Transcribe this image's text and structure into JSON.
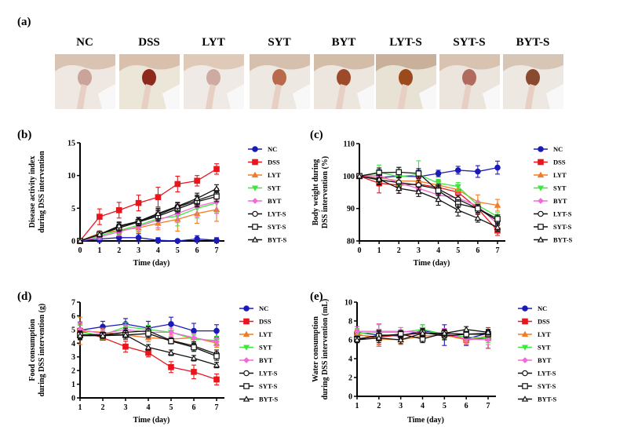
{
  "panel_a": {
    "label": "(a)",
    "groups": [
      "NC",
      "DSS",
      "LYT",
      "SYT",
      "BYT",
      "LYT-S",
      "SYT-S",
      "BYT-S"
    ]
  },
  "series_styles": [
    {
      "name": "NC",
      "color": "#1a1ab8",
      "marker": "circle-filled"
    },
    {
      "name": "DSS",
      "color": "#e8161c",
      "marker": "square-filled"
    },
    {
      "name": "LYT",
      "color": "#f27b25",
      "marker": "triangle-filled"
    },
    {
      "name": "SYT",
      "color": "#3ce83c",
      "marker": "triangle-down-filled"
    },
    {
      "name": "BYT",
      "color": "#f26ad8",
      "marker": "diamond-filled"
    },
    {
      "name": "LYT-S",
      "color": "#111111",
      "marker": "circle-open"
    },
    {
      "name": "SYT-S",
      "color": "#111111",
      "marker": "square-open"
    },
    {
      "name": "BYT-S",
      "color": "#111111",
      "marker": "triangle-open"
    }
  ],
  "chart_data": [
    {
      "id": "b",
      "panel_label": "(b)",
      "type": "line",
      "title": "",
      "xlabel": "Time (day)",
      "ylabel": [
        "Disease activity index",
        "during DSS intervention"
      ],
      "x": [
        0,
        1,
        2,
        3,
        4,
        5,
        6,
        7
      ],
      "xlim": [
        0,
        7
      ],
      "ylim": [
        0,
        15
      ],
      "yticks": [
        0,
        5,
        10,
        15
      ],
      "legend": "right",
      "series": [
        {
          "name": "NC",
          "values": [
            0,
            0.3,
            0.5,
            0.5,
            0.1,
            0,
            0.3,
            0.1
          ],
          "err": [
            0,
            0.5,
            0.6,
            0.6,
            0.4,
            0.1,
            0.5,
            0.4
          ]
        },
        {
          "name": "DSS",
          "values": [
            0,
            3.7,
            4.7,
            5.8,
            6.7,
            8.7,
            9.2,
            11.0
          ],
          "err": [
            0,
            1.2,
            1.2,
            1.2,
            1.5,
            1.2,
            0.8,
            0.8
          ]
        },
        {
          "name": "LYT",
          "values": [
            0,
            1.2,
            1.6,
            2.0,
            2.7,
            3.3,
            4.2,
            4.8
          ],
          "err": [
            0,
            0.4,
            0.6,
            0.8,
            1.0,
            1.8,
            1.5,
            1.8
          ]
        },
        {
          "name": "SYT",
          "values": [
            0,
            0.8,
            1.6,
            2.4,
            3.4,
            3.8,
            5.0,
            5.8
          ],
          "err": [
            0,
            0.4,
            0.6,
            0.9,
            1.4,
            1.5,
            1.5,
            1.5
          ]
        },
        {
          "name": "BYT",
          "values": [
            0,
            0.6,
            1.4,
            2.2,
            3.2,
            4.2,
            5.3,
            6.0
          ],
          "err": [
            0,
            0.4,
            0.6,
            0.8,
            1.2,
            1.4,
            1.6,
            1.8
          ]
        },
        {
          "name": "LYT-S",
          "values": [
            0,
            1.0,
            2.2,
            3.0,
            4.0,
            5.2,
            6.2,
            7.2
          ],
          "err": [
            0,
            0.4,
            0.6,
            0.6,
            0.8,
            0.6,
            0.8,
            0.8
          ]
        },
        {
          "name": "SYT-S",
          "values": [
            0,
            1.0,
            2.0,
            2.9,
            3.8,
            4.9,
            6.0,
            6.8
          ],
          "err": [
            0,
            0.4,
            0.6,
            0.6,
            0.8,
            0.6,
            0.8,
            0.8
          ]
        },
        {
          "name": "BYT-S",
          "values": [
            0,
            1.0,
            2.3,
            3.0,
            4.2,
            5.3,
            6.5,
            8.0
          ],
          "err": [
            0,
            0.4,
            0.6,
            0.6,
            0.8,
            0.6,
            0.8,
            0.6
          ]
        }
      ]
    },
    {
      "id": "c",
      "panel_label": "(c)",
      "type": "line",
      "title": "",
      "xlabel": "Time (day)",
      "ylabel": [
        "Body weight during",
        "DSS intervention (%)"
      ],
      "x": [
        0,
        1,
        2,
        3,
        4,
        5,
        6,
        7
      ],
      "xlim": [
        0,
        7
      ],
      "ylim": [
        80,
        110
      ],
      "yticks": [
        80,
        90,
        100,
        110
      ],
      "legend": "right",
      "series": [
        {
          "name": "NC",
          "values": [
            100,
            99.5,
            100,
            99.8,
            100.8,
            101.8,
            101.4,
            102.6
          ],
          "err": [
            0,
            2.5,
            2,
            2,
            1,
            1.2,
            1.8,
            2
          ]
        },
        {
          "name": "DSS",
          "values": [
            100,
            97.8,
            97.2,
            97.5,
            96.5,
            95.0,
            90.0,
            83.2
          ],
          "err": [
            0,
            3,
            2.5,
            2,
            2,
            2,
            1.5,
            1.5
          ]
        },
        {
          "name": "LYT",
          "values": [
            100,
            99.5,
            98.5,
            98.4,
            97.2,
            95.8,
            92.0,
            91.0
          ],
          "err": [
            0,
            1.5,
            1.5,
            1.5,
            1.5,
            1.5,
            2.2,
            1.8
          ]
        },
        {
          "name": "SYT",
          "values": [
            100,
            101.2,
            99.8,
            100.5,
            97.8,
            96.8,
            91.0,
            87.5
          ],
          "err": [
            0,
            2.2,
            2.8,
            4.2,
            1.2,
            1.2,
            1,
            1.2
          ]
        },
        {
          "name": "BYT",
          "values": [
            100,
            100.2,
            97.8,
            96.2,
            94.2,
            93.2,
            90.8,
            85.2
          ],
          "err": [
            0,
            1.5,
            1.5,
            1.5,
            1.5,
            1.5,
            1.5,
            1.5
          ]
        },
        {
          "name": "LYT-S",
          "values": [
            100,
            98.8,
            98.0,
            97.2,
            96.0,
            92.8,
            90.0,
            86.2
          ],
          "err": [
            0,
            1.5,
            1.5,
            1.5,
            1.5,
            1.2,
            1.2,
            1.2
          ]
        },
        {
          "name": "SYT-S",
          "values": [
            100,
            101.0,
            101.2,
            100.8,
            95.5,
            91.5,
            90.0,
            86.8
          ],
          "err": [
            0,
            1.5,
            1.5,
            1.5,
            1.5,
            1.2,
            1.2,
            1.2
          ]
        },
        {
          "name": "BYT-S",
          "values": [
            100,
            99.0,
            96.2,
            95.2,
            92.8,
            89.5,
            87.0,
            84.2
          ],
          "err": [
            0,
            1.5,
            1.5,
            1.5,
            1.8,
            1.8,
            1.2,
            1.2
          ]
        }
      ]
    },
    {
      "id": "d",
      "panel_label": "(d)",
      "type": "line",
      "title": "",
      "xlabel": "Time (day)",
      "ylabel": [
        "Food consumption",
        "during DSS intervention (g)"
      ],
      "x": [
        1,
        2,
        3,
        4,
        5,
        6,
        7
      ],
      "xlim": [
        1,
        7
      ],
      "ylim": [
        0,
        7
      ],
      "yticks": [
        0,
        1,
        2,
        3,
        4,
        5,
        6,
        7
      ],
      "legend": "right",
      "series": [
        {
          "name": "NC",
          "values": [
            4.95,
            5.2,
            5.4,
            5.1,
            5.4,
            4.9,
            4.9
          ],
          "err": [
            0.6,
            0.4,
            0.4,
            0.5,
            0.5,
            0.55,
            0.45
          ]
        },
        {
          "name": "DSS",
          "values": [
            4.9,
            4.4,
            3.75,
            3.3,
            2.25,
            1.9,
            1.35
          ],
          "err": [
            0.5,
            0.15,
            0.4,
            0.3,
            0.4,
            0.5,
            0.4
          ]
        },
        {
          "name": "LYT",
          "values": [
            4.9,
            4.8,
            4.6,
            4.4,
            4.3,
            4.4,
            4.0
          ],
          "err": [
            1.0,
            0.3,
            0.3,
            0.3,
            0.3,
            0.3,
            0.3
          ]
        },
        {
          "name": "SYT",
          "values": [
            4.8,
            4.6,
            5.2,
            5.0,
            4.8,
            4.3,
            4.2
          ],
          "err": [
            0.5,
            0.3,
            0.3,
            0.3,
            0.3,
            0.3,
            0.3
          ]
        },
        {
          "name": "BYT",
          "values": [
            5.0,
            4.7,
            5.0,
            4.8,
            4.8,
            4.4,
            4.1
          ],
          "err": [
            0.5,
            0.3,
            0.3,
            0.3,
            0.3,
            0.3,
            0.3
          ]
        },
        {
          "name": "LYT-S",
          "values": [
            4.6,
            4.6,
            4.8,
            4.9,
            4.2,
            3.8,
            3.2
          ],
          "err": [
            0.3,
            0.2,
            0.3,
            0.3,
            0.2,
            0.3,
            0.3
          ]
        },
        {
          "name": "SYT-S",
          "values": [
            4.6,
            4.6,
            4.6,
            4.7,
            4.15,
            3.7,
            3.05
          ],
          "err": [
            0.3,
            0.2,
            0.3,
            0.3,
            0.2,
            0.3,
            0.3
          ]
        },
        {
          "name": "BYT-S",
          "values": [
            4.55,
            4.55,
            4.6,
            3.7,
            3.3,
            2.9,
            2.4
          ],
          "err": [
            0.3,
            0.2,
            0.3,
            0.2,
            0.2,
            0.2,
            0.2
          ]
        }
      ]
    },
    {
      "id": "e",
      "panel_label": "(e)",
      "type": "line",
      "title": "",
      "xlabel": "Time (day)",
      "ylabel": [
        "Water consumption",
        "during DSS intervention (mL)"
      ],
      "x": [
        1,
        2,
        3,
        4,
        5,
        6,
        7
      ],
      "xlim": [
        1,
        7
      ],
      "ylim": [
        0,
        10
      ],
      "yticks": [
        0,
        2,
        4,
        6,
        8,
        10
      ],
      "legend": "right",
      "series": [
        {
          "name": "NC",
          "values": [
            6.8,
            6.5,
            6.4,
            7.0,
            6.5,
            6.1,
            6.7
          ],
          "err": [
            0.6,
            1.2,
            0.5,
            0.6,
            1.1,
            0.7,
            0.4
          ]
        },
        {
          "name": "DSS",
          "values": [
            6.5,
            6.3,
            6.5,
            6.7,
            6.6,
            6.0,
            6.2
          ],
          "err": [
            0.5,
            0.8,
            0.5,
            0.5,
            0.5,
            0.5,
            1.1
          ]
        },
        {
          "name": "LYT",
          "values": [
            6.6,
            6.1,
            6.0,
            6.4,
            6.5,
            6.0,
            6.4
          ],
          "err": [
            0.5,
            0.8,
            0.5,
            0.5,
            0.5,
            0.5,
            0.5
          ]
        },
        {
          "name": "SYT",
          "values": [
            6.7,
            6.8,
            6.8,
            7.1,
            6.6,
            6.3,
            6.2
          ],
          "err": [
            0.5,
            0.8,
            0.5,
            0.5,
            0.5,
            0.5,
            0.5
          ]
        },
        {
          "name": "BYT",
          "values": [
            6.9,
            6.9,
            6.9,
            6.8,
            6.7,
            6.1,
            6.0
          ],
          "err": [
            0.5,
            0.8,
            0.4,
            0.5,
            0.5,
            0.5,
            0.5
          ]
        },
        {
          "name": "LYT-S",
          "values": [
            6.0,
            6.5,
            6.5,
            6.8,
            6.4,
            6.6,
            6.7
          ],
          "err": [
            0.3,
            0.5,
            0.4,
            0.4,
            0.4,
            0.4,
            0.3
          ]
        },
        {
          "name": "SYT-S",
          "values": [
            6.1,
            6.4,
            6.6,
            6.1,
            6.7,
            6.6,
            6.6
          ],
          "err": [
            0.3,
            0.5,
            0.4,
            0.4,
            0.4,
            0.4,
            0.3
          ]
        },
        {
          "name": "BYT-S",
          "values": [
            6.0,
            6.2,
            6.0,
            6.7,
            6.7,
            7.1,
            6.8
          ],
          "err": [
            0.3,
            0.5,
            0.4,
            0.4,
            0.4,
            0.3,
            0.3
          ]
        }
      ]
    }
  ]
}
